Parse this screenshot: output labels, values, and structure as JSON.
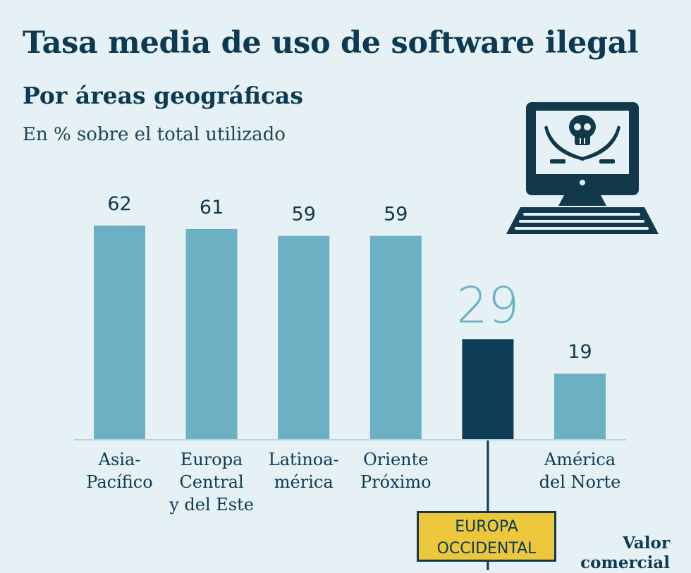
{
  "header": {
    "title": "Tasa media de uso de software ilegal",
    "subtitle": "Por áreas geográficas",
    "unit_note": "En % sobre el total utilizado"
  },
  "chart_data": {
    "type": "bar",
    "title": "Tasa media de uso de software ilegal",
    "subtitle": "Por áreas geográficas",
    "ylabel": "En % sobre el total utilizado",
    "xlabel": "",
    "ylim": [
      0,
      62
    ],
    "grid": false,
    "categories": [
      [
        "Asia-",
        "Pacífico"
      ],
      [
        "Europa",
        "Central",
        "y del Este"
      ],
      [
        "Latinoa-",
        "mérica"
      ],
      [
        "Oriente",
        "Próximo"
      ],
      [],
      [
        "América",
        "del Norte"
      ]
    ],
    "values": [
      62,
      61,
      59,
      59,
      29,
      19
    ],
    "highlight_index": 4,
    "colors": {
      "bar": "#6cb0c4",
      "highlight": "#0d3c55",
      "big_value": "#6cb0c4"
    }
  },
  "callout": {
    "label_line1": "EUROPA",
    "label_line2": "OCCIDENTAL",
    "color": "#ecc63b"
  },
  "side_note": {
    "line1": "Valor",
    "line2": "comercial"
  },
  "illustration": {
    "icon": "pirate-computer-icon",
    "color": "#12384c"
  }
}
